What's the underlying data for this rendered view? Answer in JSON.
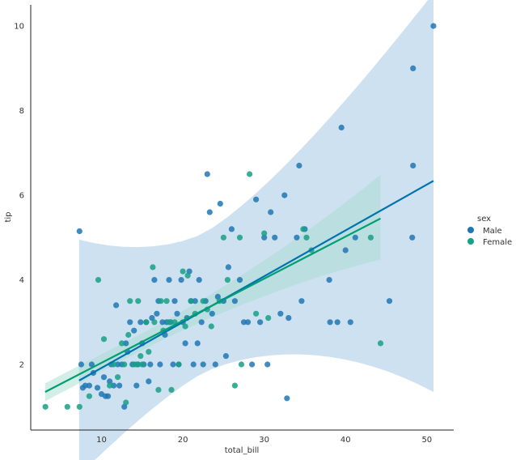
{
  "chart_data": {
    "type": "scatter",
    "xlabel": "total_bill",
    "ylabel": "tip",
    "xlim": [
      1.3,
      53.3
    ],
    "ylim": [
      0.45,
      10.5
    ],
    "xticks": [
      10,
      20,
      30,
      40,
      50
    ],
    "yticks": [
      2,
      4,
      6,
      8,
      10
    ],
    "grid": false,
    "legend": {
      "title": "sex",
      "placement": "right"
    },
    "series": [
      {
        "name": "Male",
        "color": "#1f77b4",
        "line_color": "#0072b2",
        "ci_color": "#9dc3e2",
        "regression": {
          "x": [
            7.25,
            50.81
          ],
          "y": [
            1.62,
            6.34
          ],
          "ci_low_end": [
            5.4,
            1.35
          ],
          "ci_high_end": [
            7.25,
            1.9
          ]
        },
        "points": [
          [
            7.3,
            5.15
          ],
          [
            7.5,
            2.0
          ],
          [
            7.7,
            1.45
          ],
          [
            8.0,
            1.5
          ],
          [
            8.5,
            1.5
          ],
          [
            8.8,
            2.0
          ],
          [
            9.0,
            1.8
          ],
          [
            9.5,
            1.45
          ],
          [
            10.0,
            1.3
          ],
          [
            10.3,
            1.7
          ],
          [
            10.5,
            1.25
          ],
          [
            10.8,
            1.25
          ],
          [
            11.0,
            1.6
          ],
          [
            11.2,
            2.0
          ],
          [
            11.5,
            1.5
          ],
          [
            11.8,
            3.4
          ],
          [
            12.0,
            2.0
          ],
          [
            12.2,
            1.5
          ],
          [
            12.5,
            2.0
          ],
          [
            12.8,
            1.0
          ],
          [
            13.0,
            2.5
          ],
          [
            13.2,
            2.3
          ],
          [
            13.5,
            3.0
          ],
          [
            13.8,
            2.0
          ],
          [
            14.0,
            2.8
          ],
          [
            14.3,
            1.5
          ],
          [
            14.5,
            2.0
          ],
          [
            14.8,
            3.0
          ],
          [
            15.0,
            2.5
          ],
          [
            15.2,
            2.0
          ],
          [
            15.5,
            3.0
          ],
          [
            15.8,
            1.6
          ],
          [
            16.0,
            2.0
          ],
          [
            16.2,
            3.1
          ],
          [
            16.5,
            4.0
          ],
          [
            16.8,
            3.2
          ],
          [
            17.0,
            3.5
          ],
          [
            17.2,
            2.0
          ],
          [
            17.5,
            3.0
          ],
          [
            17.8,
            2.7
          ],
          [
            18.0,
            3.0
          ],
          [
            18.3,
            4.0
          ],
          [
            18.5,
            3.0
          ],
          [
            18.8,
            2.0
          ],
          [
            19.0,
            3.5
          ],
          [
            19.3,
            3.2
          ],
          [
            19.5,
            2.0
          ],
          [
            19.8,
            4.0
          ],
          [
            20.0,
            3.0
          ],
          [
            20.3,
            2.5
          ],
          [
            20.5,
            3.1
          ],
          [
            20.8,
            4.2
          ],
          [
            21.0,
            3.5
          ],
          [
            21.3,
            2.0
          ],
          [
            21.5,
            3.5
          ],
          [
            21.8,
            2.5
          ],
          [
            22.0,
            4.0
          ],
          [
            22.3,
            3.0
          ],
          [
            22.5,
            2.0
          ],
          [
            22.8,
            3.5
          ],
          [
            23.0,
            6.5
          ],
          [
            23.3,
            5.6
          ],
          [
            23.6,
            3.2
          ],
          [
            24.0,
            2.0
          ],
          [
            24.3,
            3.6
          ],
          [
            24.6,
            5.8
          ],
          [
            25.0,
            3.5
          ],
          [
            25.3,
            2.2
          ],
          [
            25.6,
            4.3
          ],
          [
            26.0,
            5.2
          ],
          [
            26.4,
            3.5
          ],
          [
            27.0,
            4.0
          ],
          [
            27.5,
            3.0
          ],
          [
            28.0,
            3.0
          ],
          [
            28.5,
            2.0
          ],
          [
            29.0,
            5.9
          ],
          [
            29.5,
            3.0
          ],
          [
            30.0,
            5.0
          ],
          [
            30.4,
            2.0
          ],
          [
            30.8,
            5.6
          ],
          [
            31.3,
            5.0
          ],
          [
            32.0,
            3.2
          ],
          [
            32.5,
            6.0
          ],
          [
            32.8,
            1.2
          ],
          [
            33.0,
            3.1
          ],
          [
            34.0,
            5.0
          ],
          [
            34.3,
            6.7
          ],
          [
            34.6,
            3.5
          ],
          [
            35.0,
            5.2
          ],
          [
            38.0,
            4.0
          ],
          [
            38.1,
            3.0
          ],
          [
            39.0,
            3.0
          ],
          [
            39.5,
            7.6
          ],
          [
            40.0,
            4.7
          ],
          [
            40.6,
            3.0
          ],
          [
            41.2,
            5.0
          ],
          [
            45.4,
            3.5
          ],
          [
            48.3,
            9.0
          ],
          [
            48.3,
            6.7
          ],
          [
            48.2,
            5.0
          ],
          [
            50.8,
            10.0
          ]
        ]
      },
      {
        "name": "Female",
        "color": "#16a085",
        "line_color": "#009e73",
        "ci_color": "#a8dccf",
        "regression": {
          "x": [
            3.07,
            44.3
          ],
          "y": [
            1.35,
            5.45
          ],
          "ci_low_end": [
            0.98,
            4.48
          ],
          "ci_high_end": [
            1.7,
            6.48
          ]
        },
        "points": [
          [
            3.1,
            1.0
          ],
          [
            5.8,
            1.0
          ],
          [
            7.3,
            1.0
          ],
          [
            8.5,
            1.25
          ],
          [
            9.6,
            4.0
          ],
          [
            10.3,
            2.6
          ],
          [
            11.0,
            1.5
          ],
          [
            11.5,
            2.0
          ],
          [
            12.0,
            1.7
          ],
          [
            12.5,
            2.5
          ],
          [
            12.8,
            2.0
          ],
          [
            13.0,
            1.1
          ],
          [
            13.3,
            2.7
          ],
          [
            13.5,
            3.5
          ],
          [
            14.0,
            2.0
          ],
          [
            14.3,
            2.0
          ],
          [
            14.5,
            3.5
          ],
          [
            14.8,
            2.2
          ],
          [
            15.0,
            2.0
          ],
          [
            15.5,
            3.0
          ],
          [
            15.8,
            2.3
          ],
          [
            16.3,
            4.3
          ],
          [
            16.5,
            3.0
          ],
          [
            17.0,
            1.4
          ],
          [
            17.3,
            3.5
          ],
          [
            17.6,
            2.8
          ],
          [
            18.0,
            3.5
          ],
          [
            18.3,
            3.0
          ],
          [
            18.6,
            1.4
          ],
          [
            19.0,
            3.0
          ],
          [
            19.5,
            2.0
          ],
          [
            20.0,
            4.2
          ],
          [
            20.3,
            2.9
          ],
          [
            20.6,
            4.1
          ],
          [
            21.0,
            3.5
          ],
          [
            21.5,
            3.2
          ],
          [
            22.5,
            3.5
          ],
          [
            23.0,
            3.3
          ],
          [
            23.5,
            2.9
          ],
          [
            24.5,
            3.5
          ],
          [
            25.0,
            5.0
          ],
          [
            25.5,
            4.0
          ],
          [
            26.4,
            1.5
          ],
          [
            27.0,
            5.0
          ],
          [
            27.2,
            2.0
          ],
          [
            28.2,
            6.5
          ],
          [
            29.0,
            3.2
          ],
          [
            30.0,
            5.1
          ],
          [
            30.5,
            3.1
          ],
          [
            34.8,
            5.2
          ],
          [
            35.2,
            5.0
          ],
          [
            35.8,
            4.7
          ],
          [
            43.1,
            5.0
          ],
          [
            44.3,
            2.5
          ]
        ]
      }
    ]
  }
}
